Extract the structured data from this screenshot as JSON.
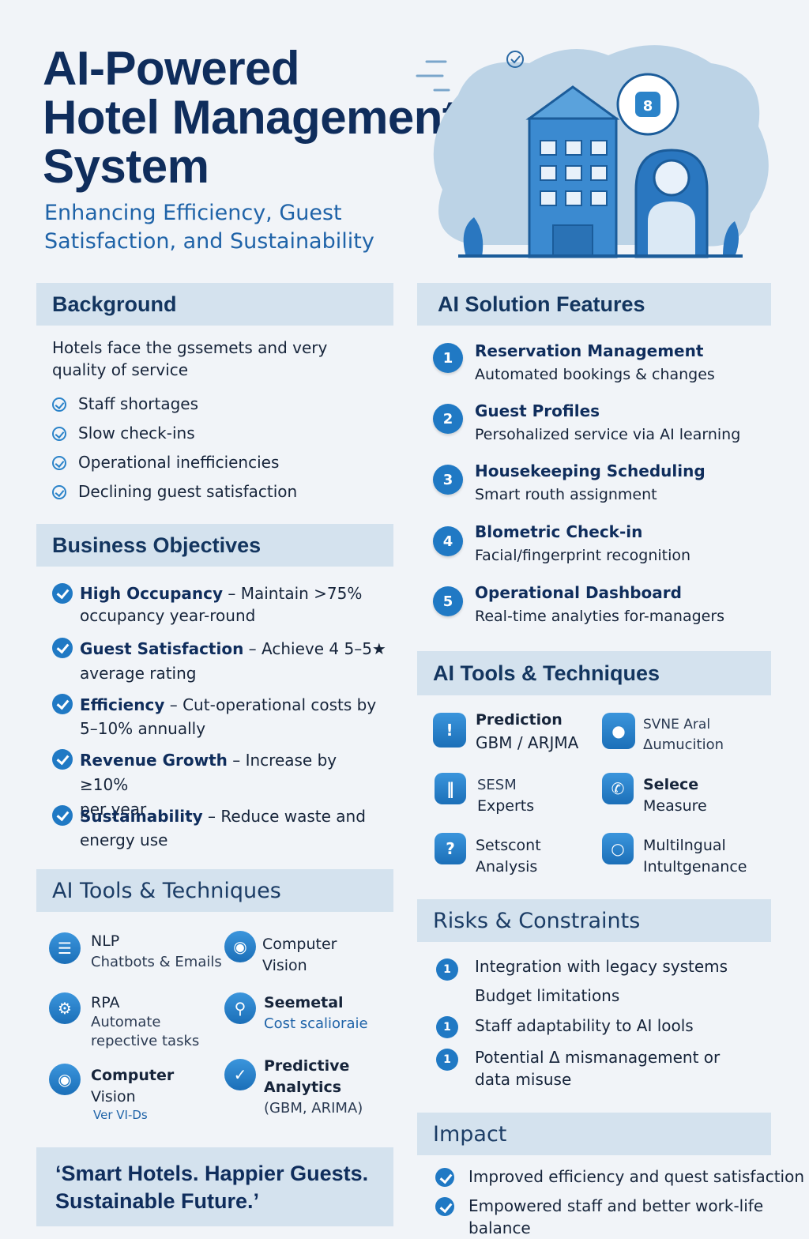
{
  "header": {
    "title_line1": "AI-Powered",
    "title_line2": "Hotel Management",
    "title_line3": "System",
    "subtitle_line1": "Enhancing Efficiency, Guest",
    "subtitle_line2": "Satisfaction, and Sustainability"
  },
  "background": {
    "heading": "Background",
    "intro_line1": "Hotels face the ɡssemets and very",
    "intro_line2": "quality of service",
    "items": [
      "Staff shortages",
      "Slow check-ins",
      "Operational inefficiencies",
      "Declining guest satisfaction"
    ]
  },
  "objectives": {
    "heading": "Business Objectives",
    "items": [
      {
        "title": "High Occupancy",
        "line1": " – Maintain  >75%",
        "line2": "occupancy year-round"
      },
      {
        "title": "Guest Satisfaction",
        "line1": " – Achieve 4 5–5★",
        "line2": "average rating"
      },
      {
        "title": "Efficiency",
        "line1": " – Cut-operational costs by",
        "line2": "5–10% annually"
      },
      {
        "title": "Revenue Growth",
        "line1": " – Increase by ≥10%",
        "line2": "per year"
      },
      {
        "title": "Sustainability",
        "line1": " – Reduce waste and",
        "line2": "energy use"
      }
    ]
  },
  "tools_left": {
    "heading": "AI Tools & Techniques",
    "items": [
      {
        "title": "NLP",
        "sub1": "Chatbots & Emails",
        "sub2": ""
      },
      {
        "title": "Computer",
        "sub1": "Vision",
        "sub2": ""
      },
      {
        "title": "RPA",
        "sub1": "Automate",
        "sub2": "repective tasks"
      },
      {
        "title": "Seemetal",
        "sub1": "Cost scalioraiе",
        "sub2": ""
      },
      {
        "title": "Computer",
        "sub1": "Vision",
        "sub2": "Ver VI-Ds"
      },
      {
        "title": "Predictive",
        "sub1": "Analytics",
        "sub2": "(GBM, ARIMA)"
      }
    ]
  },
  "quote": {
    "line1": "‘Smart Hotels. Happier Guests.",
    "line2": "Sustainable Future.’"
  },
  "features": {
    "heading": "AI Solution Features",
    "items": [
      {
        "num": "1",
        "title": "Reservation Management",
        "sub": "Automated bookings & changes"
      },
      {
        "num": "2",
        "title": "Guest Profiles",
        "sub": "Persohalized service via AI learning"
      },
      {
        "num": "3",
        "title": "Housekeeping Scheduling",
        "sub": "Smart routh assignment"
      },
      {
        "num": "4",
        "title": "Blometric Check-in",
        "sub": "Facial/fingerprint recognition"
      },
      {
        "num": "5",
        "title": "Operational Dashboard",
        "sub": "Real-time analyties for-managers"
      }
    ]
  },
  "tools_right": {
    "heading": "AI Tools & Techniques",
    "items": [
      {
        "title": "Prediction",
        "sub": "GBM / ARJMA"
      },
      {
        "title": "SVNE Aral",
        "sub": "Δumucition"
      },
      {
        "title": "SESM",
        "sub": "Experts"
      },
      {
        "title": "Selece",
        "sub": "Measure"
      },
      {
        "title": "Setscont",
        "sub": "Analysis"
      },
      {
        "title": "Multilngual",
        "sub": "Intultgenance"
      }
    ]
  },
  "risks": {
    "heading": "Risks & Constraints",
    "items": [
      {
        "num": "1",
        "line1": "Integration with legacy systems",
        "line2": ""
      },
      {
        "num": "",
        "line1": "Budget limitations",
        "line2": ""
      },
      {
        "num": "1",
        "line1": "Staff adaptability to  AI lools",
        "line2": ""
      },
      {
        "num": "1",
        "line1": "Potential Δ  mismanagement or",
        "line2": "data misuse"
      }
    ]
  },
  "impact": {
    "heading": "Impact",
    "items": [
      "Improved efficiency and quest satisfaction",
      "Empowered staff and better work-life balance"
    ]
  },
  "colors": {
    "accent": "#2079c4",
    "title": "#0f2d5c",
    "section_bg": "#d4e2ee",
    "page_bg": "#f1f4f8"
  }
}
